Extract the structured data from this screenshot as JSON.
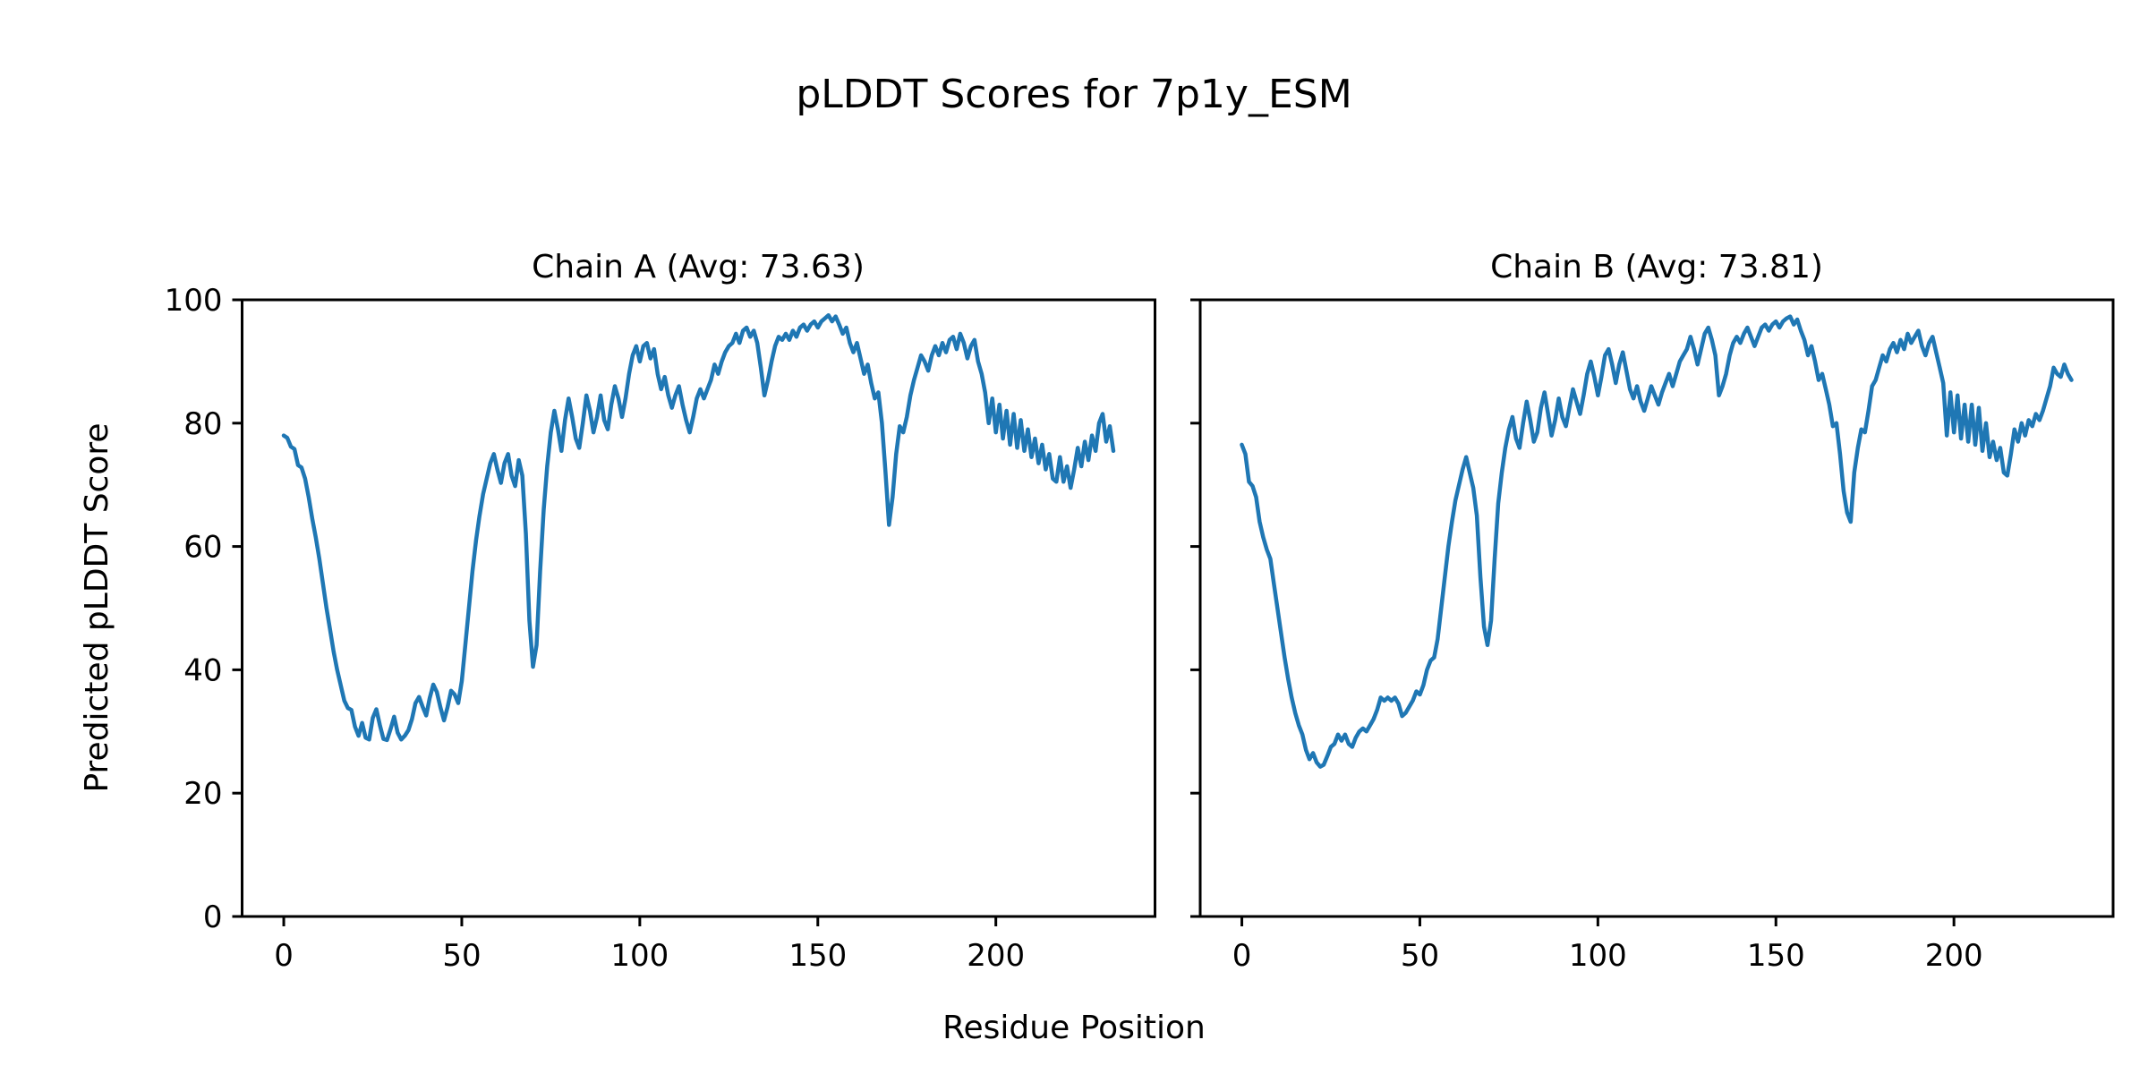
{
  "figure": {
    "title": "pLDDT Scores for 7p1y_ESM",
    "xlabel": "Residue Position",
    "ylabel": "Predicted pLDDT Score",
    "background_color": "#ffffff",
    "line_color": "#1f77b4",
    "spine_color": "#000000"
  },
  "chart_data": [
    {
      "type": "line",
      "title": "Chain A (Avg: 73.63)",
      "series_name": "Chain A pLDDT",
      "average": 73.63,
      "x_start": 0,
      "x_step": 1,
      "x_ticks": [
        0,
        50,
        100,
        150,
        200
      ],
      "y_ticks": [
        0,
        20,
        40,
        60,
        80,
        100
      ],
      "xlim": [
        -11.7,
        244.7
      ],
      "ylim": [
        0,
        100
      ],
      "show_y_tick_labels": true,
      "grid": false,
      "values": [
        78,
        77.6,
        76.2,
        75.8,
        73.2,
        72.8,
        71,
        68,
        64.5,
        61.5,
        58,
        54,
        50,
        46.5,
        43,
        40,
        37.5,
        35,
        33.8,
        33.5,
        30.8,
        29.3,
        31.4,
        29,
        28.7,
        32.2,
        33.6,
        31,
        28.8,
        28.6,
        30.4,
        32.4,
        29.8,
        28.7,
        29.3,
        30.2,
        32,
        34.6,
        35.6,
        34,
        32.6,
        35.4,
        37.6,
        36.4,
        33.9,
        31.8,
        33.9,
        36.6,
        36,
        34.6,
        38.2,
        44,
        50,
        56,
        61,
        65,
        68.5,
        71,
        73.5,
        75,
        72.5,
        70.3,
        73.5,
        75,
        71.5,
        69.8,
        74,
        71.5,
        62,
        48,
        40.5,
        44,
        56,
        66,
        73,
        78.5,
        82,
        79,
        75.5,
        80.5,
        84,
        81,
        77.5,
        76,
        80,
        84.5,
        82,
        78.5,
        81,
        84.5,
        80.5,
        79,
        83,
        86,
        84,
        81,
        84,
        88,
        91,
        92.5,
        90,
        92.5,
        93,
        90.5,
        92,
        88,
        85.5,
        87.5,
        84.5,
        82.5,
        84.5,
        86,
        83,
        80.5,
        78.5,
        81,
        84,
        85.5,
        84,
        85.5,
        87,
        89.5,
        88,
        90,
        91.5,
        92.5,
        93,
        94.5,
        93,
        95,
        95.5,
        94,
        95,
        93,
        89,
        84.5,
        87,
        90,
        92.5,
        94,
        93.5,
        94.5,
        93.5,
        95,
        94,
        95.5,
        96,
        95,
        96,
        96.5,
        95.5,
        96.5,
        97,
        97.5,
        96.5,
        97.3,
        96,
        94.5,
        95.5,
        93,
        91.5,
        93,
        90.5,
        88,
        89.5,
        86.5,
        84,
        85,
        80,
        72,
        63.5,
        68,
        75,
        79.5,
        78.5,
        81,
        84.5,
        87,
        89,
        91,
        90,
        88.5,
        91,
        92.5,
        91,
        93,
        91.5,
        93.5,
        94,
        92,
        94.5,
        93,
        90.5,
        92.5,
        93.5,
        90,
        88,
        85,
        80,
        84,
        78.5,
        83,
        77.5,
        82,
        76.5,
        81.5,
        76,
        80.5,
        75.5,
        79,
        74.5,
        77.5,
        73.5,
        76.5,
        72.5,
        75,
        71,
        70.5,
        74.5,
        70.5,
        73,
        69.5,
        72.5,
        76,
        73,
        77,
        74,
        78,
        75.5,
        80,
        81.5,
        77,
        79.5,
        75.5
      ]
    },
    {
      "type": "line",
      "title": "Chain B (Avg: 73.81)",
      "series_name": "Chain B pLDDT",
      "average": 73.81,
      "x_start": 0,
      "x_step": 1,
      "x_ticks": [
        0,
        50,
        100,
        150,
        200
      ],
      "y_ticks": [
        0,
        20,
        40,
        60,
        80,
        100
      ],
      "xlim": [
        -11.7,
        244.7
      ],
      "ylim": [
        0,
        100
      ],
      "show_y_tick_labels": false,
      "grid": false,
      "values": [
        76.5,
        75,
        70.5,
        69.8,
        68,
        64,
        61.5,
        59.5,
        58,
        54,
        50,
        46,
        42,
        38.5,
        35.5,
        33,
        31,
        29.5,
        27,
        25.5,
        26.5,
        25,
        24.3,
        24.6,
        26,
        27.5,
        28,
        29.5,
        28.5,
        29.5,
        28,
        27.5,
        29,
        30,
        30.5,
        30,
        31,
        32,
        33.5,
        35.5,
        35,
        35.5,
        35,
        35.5,
        34.5,
        32.5,
        33,
        34,
        35,
        36.5,
        36,
        37.5,
        40,
        41.5,
        42,
        45,
        50,
        55,
        60,
        64,
        67.5,
        70,
        72.5,
        74.5,
        72,
        69.5,
        65,
        55,
        47,
        44,
        48,
        58,
        67,
        72,
        76,
        79,
        81,
        77.5,
        76,
        80,
        83.5,
        80.5,
        77,
        78.5,
        82.5,
        85,
        81.5,
        78,
        80.5,
        84,
        81,
        79.5,
        82.5,
        85.5,
        83.5,
        81.5,
        84.5,
        88,
        90,
        87.5,
        84.5,
        87.5,
        91,
        92,
        89.5,
        86.5,
        89.5,
        91.5,
        88.5,
        85.5,
        84,
        86,
        83.5,
        82,
        84,
        86,
        84.5,
        83,
        85,
        86.5,
        88,
        86,
        88,
        90,
        91,
        92,
        94,
        92,
        89.5,
        92,
        94.5,
        95.5,
        93.5,
        91,
        84.5,
        86,
        88,
        91,
        93,
        94,
        93,
        94.5,
        95.5,
        94,
        92.5,
        94,
        95.5,
        96,
        95,
        96,
        96.5,
        95.5,
        96.5,
        97,
        97.3,
        96,
        96.8,
        95,
        93.5,
        91,
        92.5,
        90,
        87,
        88,
        85.5,
        83,
        79.5,
        80,
        75,
        69,
        65.5,
        64,
        72,
        76,
        79,
        78.5,
        82,
        86,
        87,
        89,
        91,
        90,
        92,
        93,
        91.5,
        93.5,
        92,
        94.5,
        93,
        94,
        95,
        92.5,
        91,
        93,
        94,
        91.5,
        89,
        86.5,
        78,
        85,
        78.5,
        84.5,
        77.5,
        83,
        77,
        83,
        76.5,
        82.5,
        75.5,
        80,
        74.5,
        77,
        74,
        76,
        72,
        71.5,
        75,
        79,
        77,
        80,
        78,
        80.5,
        79.5,
        81.5,
        80.5,
        82,
        84,
        86,
        89,
        88,
        87.5,
        89.5,
        88,
        87
      ]
    }
  ]
}
